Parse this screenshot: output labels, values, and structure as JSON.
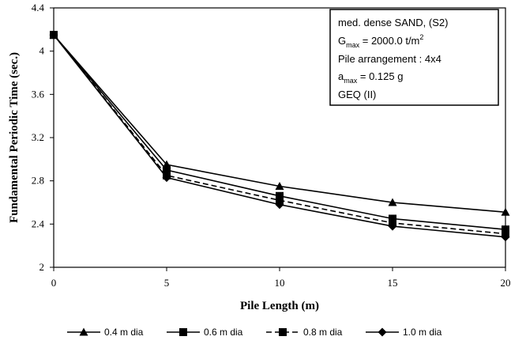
{
  "chart_data": {
    "type": "line",
    "xlabel": "Pile Length (m)",
    "ylabel": "Fundamental Periodic Time (sec.)",
    "xlim": [
      0,
      20
    ],
    "ylim": [
      2,
      4.4
    ],
    "x_ticks": [
      "0",
      "5",
      "10",
      "15",
      "20"
    ],
    "y_ticks": [
      "2",
      "2.4",
      "2.8",
      "3.2",
      "3.6",
      "4",
      "4.4"
    ],
    "grid": false,
    "legend_position": "bottom",
    "x": [
      0,
      5,
      10,
      15,
      20
    ],
    "series": [
      {
        "name": "0.4 m dia",
        "marker": "triangle",
        "line": "solid",
        "values": [
          4.15,
          2.95,
          2.75,
          2.6,
          2.51
        ]
      },
      {
        "name": "0.6 m dia",
        "marker": "square",
        "line": "solid",
        "values": [
          4.15,
          2.9,
          2.66,
          2.45,
          2.35
        ]
      },
      {
        "name": "0.8 m dia",
        "marker": "square",
        "line": "dashed",
        "values": [
          4.15,
          2.85,
          2.62,
          2.41,
          2.31
        ]
      },
      {
        "name": "1.0 m dia",
        "marker": "diamond",
        "line": "solid",
        "values": [
          4.15,
          2.83,
          2.58,
          2.38,
          2.28
        ]
      }
    ],
    "annotation": {
      "line1": "med. dense SAND, (S2)",
      "line2_main": "G",
      "line2_sub": "max",
      "line2_rest": " = 2000.0 t/m",
      "line2_sup": "2",
      "line3": "Pile arrangement : 4x4",
      "line4_main": "a",
      "line4_sub": "max",
      "line4_rest": " = 0.125 g",
      "line5": "GEQ (II)"
    }
  }
}
